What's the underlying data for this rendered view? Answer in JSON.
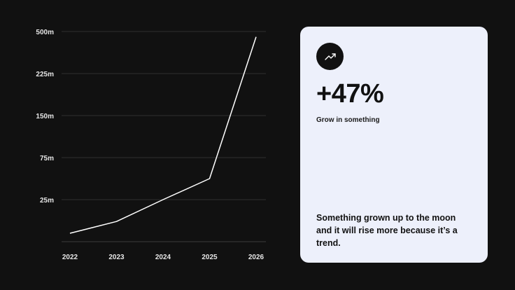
{
  "chart_data": {
    "type": "line",
    "x": [
      "2022",
      "2023",
      "2024",
      "2025",
      "2026"
    ],
    "y_tick_labels": [
      "500m",
      "225m",
      "150m",
      "75m",
      "25m"
    ],
    "series": [
      {
        "values": [
          5,
          12,
          25,
          50,
          465
        ]
      }
    ],
    "grid": true,
    "line_color": "#ffffff",
    "background": "#111111"
  },
  "card": {
    "icon": "trending-up-icon",
    "stat_value": "+47%",
    "stat_label": "Grow in something",
    "description": "Something grown up to the moon and it will rise more because it’s a trend.",
    "background": "#edf0fb"
  }
}
